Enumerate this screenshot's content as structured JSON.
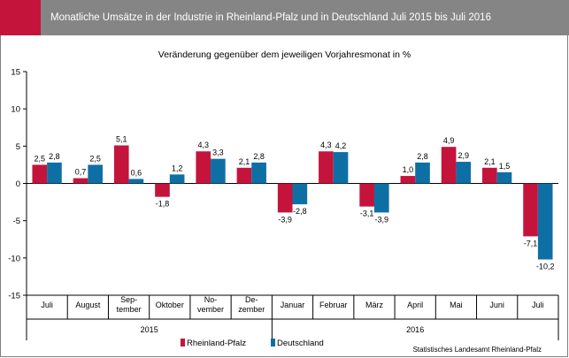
{
  "header": {
    "title": "Monatliche Umsätze in der  Industrie in Rheinland-Pfalz und in Deutschland  Juli 2015 bis Juli 2016",
    "accent_color": "#c4143c",
    "bar_color": "#858585"
  },
  "source": "Statistisches Landesamt Rheinland-Pfalz",
  "chart_data": {
    "type": "bar",
    "title": "",
    "subtitle": "Veränderung gegenüber dem jeweiligen Vorjahresmonat in %",
    "categories": [
      [
        "Juli"
      ],
      [
        "August"
      ],
      [
        "Sep-",
        "tember"
      ],
      [
        "Oktober"
      ],
      [
        "No-",
        "vember"
      ],
      [
        "De-",
        "zember"
      ],
      [
        "Januar"
      ],
      [
        "Februar"
      ],
      [
        "März"
      ],
      [
        "April"
      ],
      [
        "Mai"
      ],
      [
        "Juni"
      ],
      [
        "Juli"
      ]
    ],
    "year_groups": [
      {
        "label": "2015",
        "start": 0,
        "end": 5
      },
      {
        "label": "2016",
        "start": 6,
        "end": 12
      }
    ],
    "series": [
      {
        "name": "Rheinland-Pfalz",
        "color": "#c4143c",
        "values": [
          2.5,
          0.7,
          5.1,
          -1.8,
          4.3,
          2.1,
          -3.9,
          4.3,
          -3.1,
          1.0,
          4.9,
          2.1,
          -7.1
        ],
        "labels": [
          "2,5",
          "0,7",
          "5,1",
          "-1,8",
          "4,3",
          "2,1",
          "-3,9",
          "4,3",
          "-3,1",
          "1,0",
          "4,9",
          "2,1",
          "-7,1"
        ]
      },
      {
        "name": "Deutschland",
        "color": "#0e6fa5",
        "values": [
          2.8,
          2.5,
          0.6,
          1.2,
          3.3,
          2.8,
          -2.8,
          4.2,
          -3.9,
          2.8,
          2.9,
          1.5,
          -10.2
        ],
        "labels": [
          "2,8",
          "2,5",
          "0,6",
          "1,2",
          "3,3",
          "2,8",
          "-2,8",
          "4,2",
          "-3,9",
          "2,8",
          "2,9",
          "1,5",
          "-10,2"
        ]
      }
    ],
    "ylim": [
      -15,
      15
    ],
    "yticks": [
      15,
      10,
      5,
      0,
      -5,
      -10,
      -15
    ],
    "ytick_labels": [
      "15",
      "10",
      "5",
      "0",
      "-5",
      "-10",
      "-15"
    ],
    "grid": false,
    "legend_position": "bottom-center"
  }
}
